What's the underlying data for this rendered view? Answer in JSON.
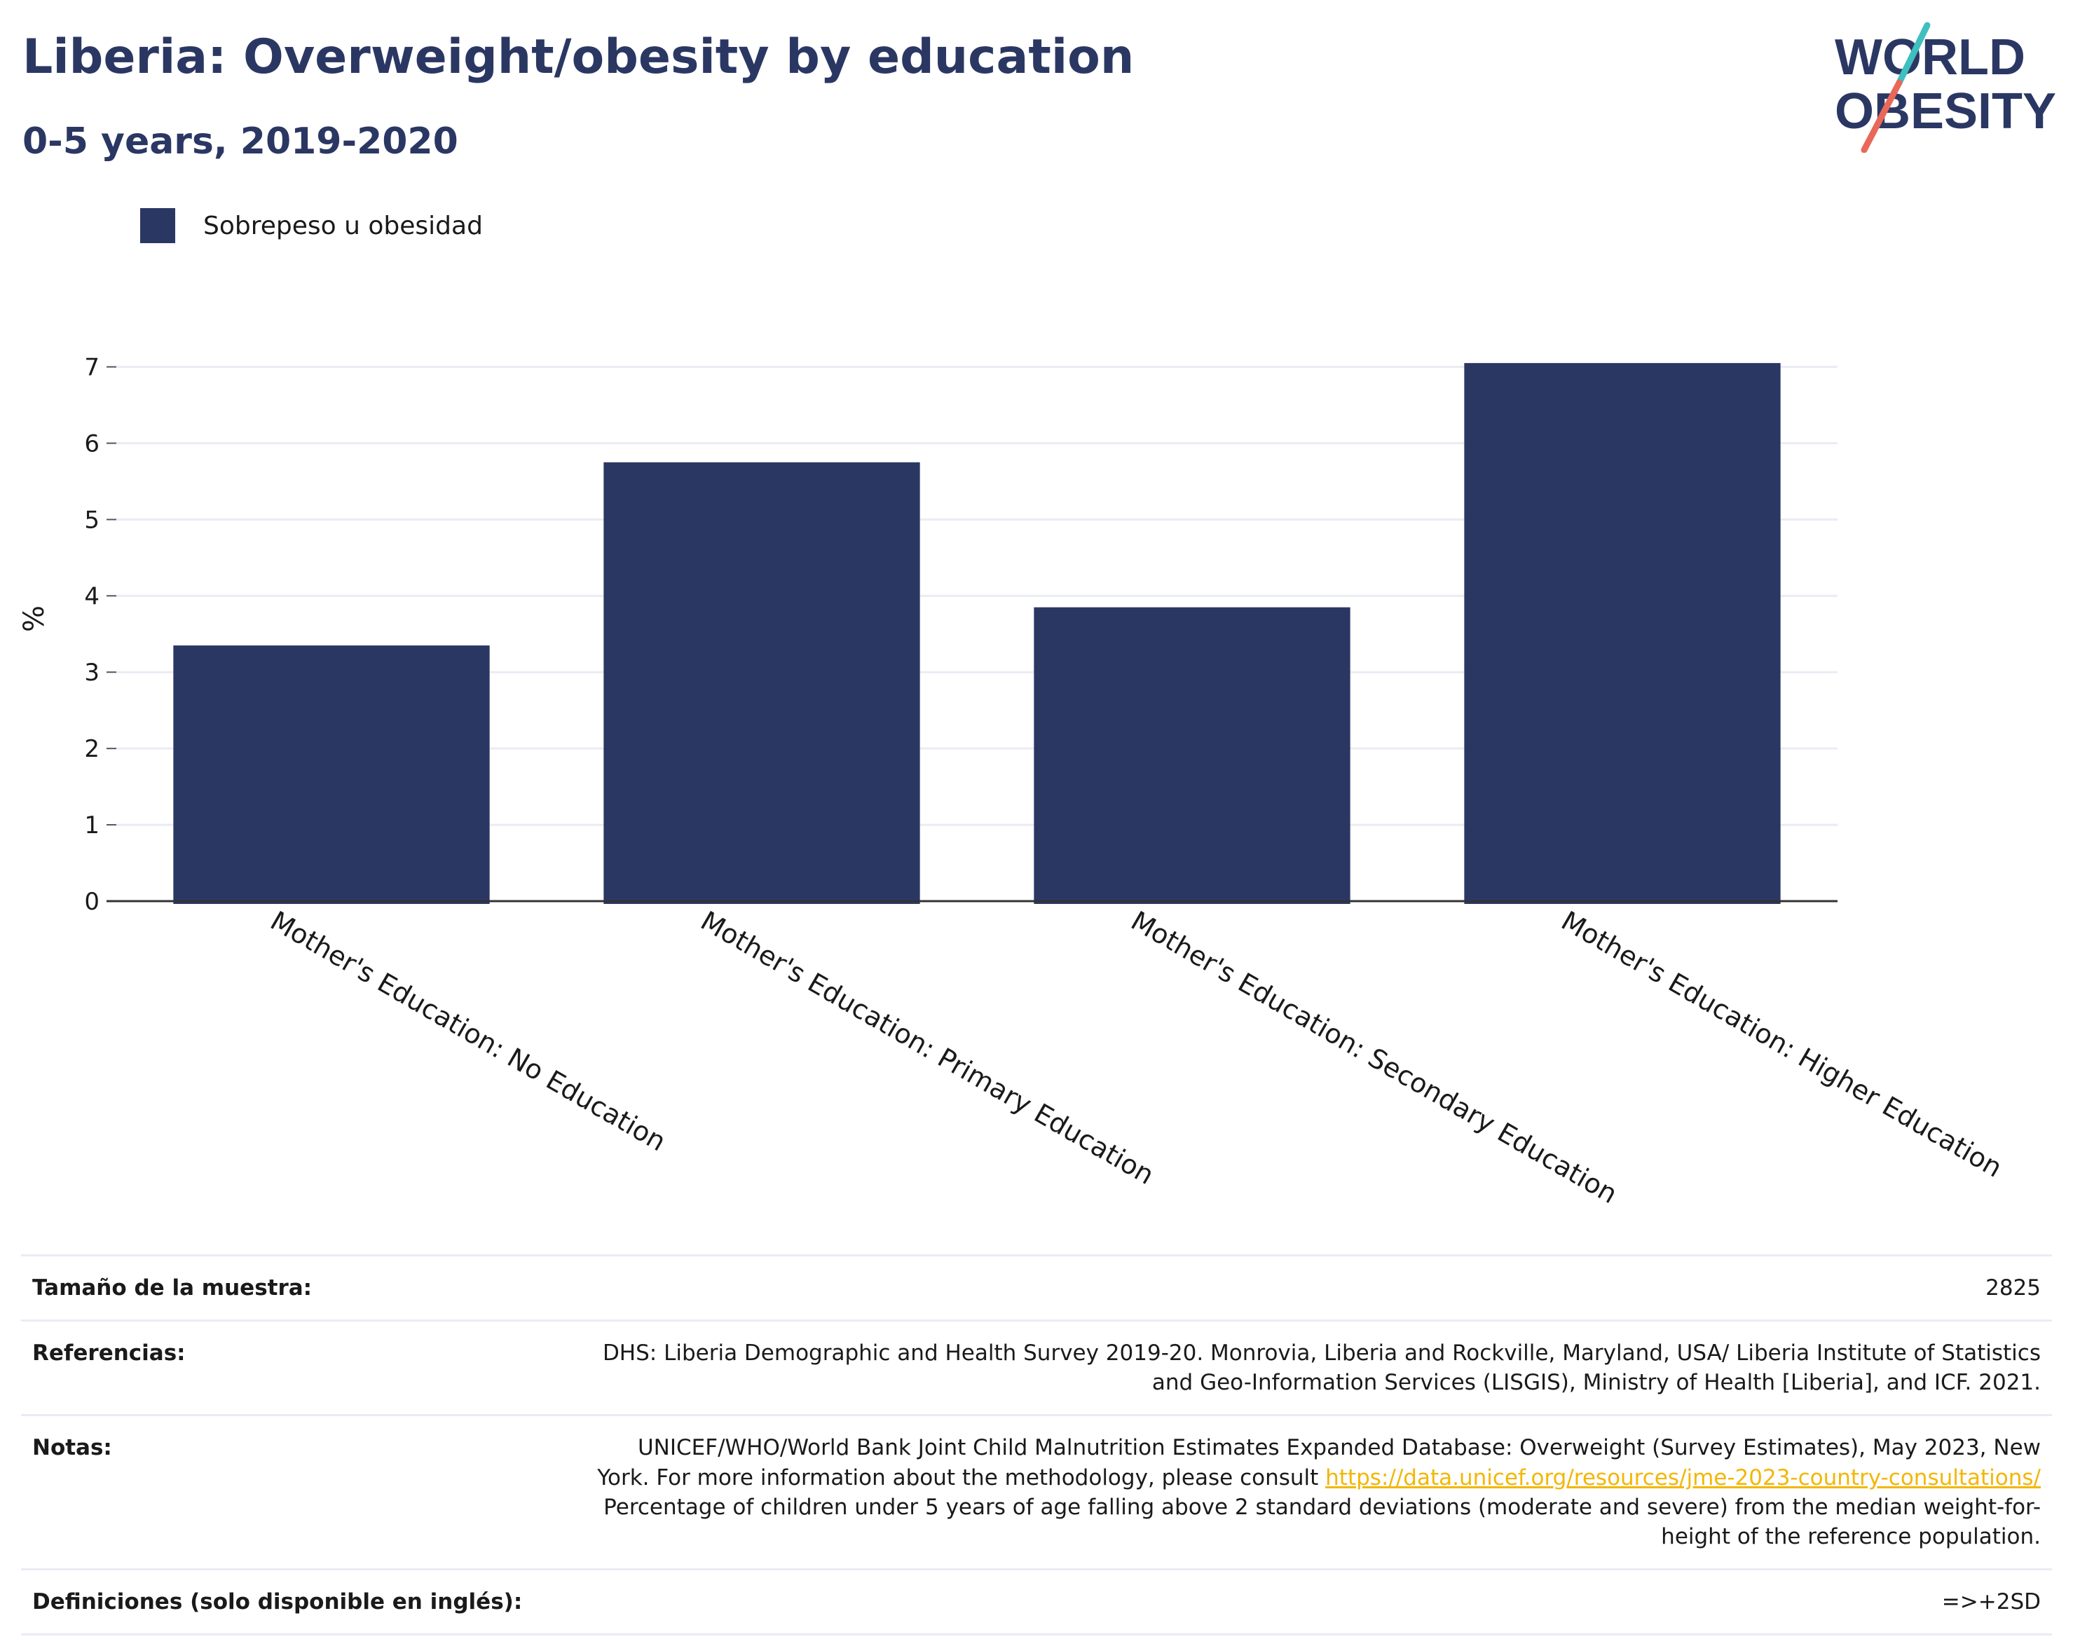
{
  "header": {
    "title": "Liberia: Overweight/obesity by education",
    "subtitle": "0-5 years, 2019-2020"
  },
  "logo": {
    "line1": "WORLD",
    "line2": "OBESITY",
    "colors": {
      "text": "#2b3763",
      "slash_red": "#e8685a",
      "slash_teal": "#3fbfbf"
    }
  },
  "chart_data": {
    "type": "bar",
    "categories": [
      "Mother's Education: No Education",
      "Mother's Education: Primary Education",
      "Mother's Education: Secondary Education",
      "Mother's Education: Higher Education"
    ],
    "series": [
      {
        "name": "Sobrepeso u obesidad",
        "values": [
          3.35,
          5.75,
          3.85,
          7.05
        ],
        "color": "#2b3763"
      }
    ],
    "ylabel": "%",
    "xlabel": "",
    "ylim": [
      0,
      7.4
    ],
    "yticks": [
      0,
      1,
      2,
      3,
      4,
      5,
      6,
      7
    ],
    "grid": true,
    "legend_position": "top-left"
  },
  "info": {
    "sample_size_label": "Tamaño de la muestra:",
    "sample_size_value": "2825",
    "references_label": "Referencias:",
    "references_line1": "DHS: Liberia Demographic and Health Survey 2019-20. Monrovia, Liberia and Rockville, Maryland, USA/ Liberia Institute of Statistics",
    "references_line2": "and Geo-Information Services (LISGIS), Ministry of Health [Liberia], and ICF. 2021.",
    "notes_label": "Notas:",
    "notes_line1": "UNICEF/WHO/World Bank Joint Child Malnutrition Estimates Expanded Database: Overweight (Survey Estimates), May 2023, New",
    "notes_line2_prefix": "York. For more information about the methodology, please consult",
    "notes_link": "https://data.unicef.org/resources/jme-2023-country-consultations/",
    "notes_line3": "Percentage of children under 5 years of age falling above 2 standard deviations (moderate and severe) from the median weight-for-",
    "notes_line4": "height of the reference population.",
    "definitions_label": "Definiciones (solo disponible en inglés):",
    "definitions_value": "=>+2SD"
  }
}
